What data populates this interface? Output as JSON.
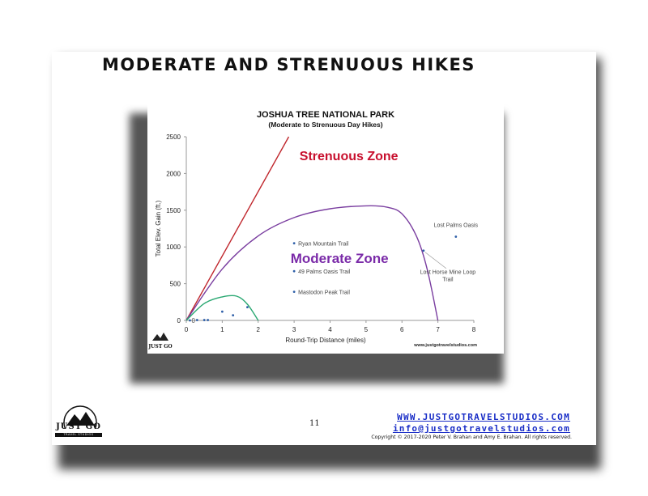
{
  "slide": {
    "title": "MODERATE AND STRENUOUS HIKES",
    "page_number": "11",
    "footer_url": "WWW.JUSTGOTRAVELSTUDIOS.COM",
    "footer_email": "info@justgotravelstudios.com",
    "copyright": "Copyright © 2017-2020 Peter V. Brahan and Amy E. Brahan.  All rights reserved.",
    "logo_text": "JUST GO",
    "logo_subtext": "TRAVEL STUDIOS"
  },
  "chart_data": {
    "type": "scatter",
    "title": "JOSHUA TREE NATIONAL PARK",
    "subtitle": "(Moderate to Strenuous Day Hikes)",
    "xlabel": "Round-Trip Distance (miles)",
    "ylabel": "Total Elev. Gain (ft.)",
    "xlim": [
      0,
      8
    ],
    "ylim": [
      0,
      2500
    ],
    "xticks": [
      "0",
      "1",
      "2",
      "3",
      "4",
      "5",
      "6",
      "7",
      "8"
    ],
    "yticks": [
      "0",
      "500",
      "1000",
      "1500",
      "2000",
      "2500"
    ],
    "watermark": "www.justgotravelstudios.com",
    "logo_text": "JUST GO",
    "grid": false,
    "points": [
      {
        "x": 0.1,
        "y": 0,
        "label": "0"
      },
      {
        "x": 0.3,
        "y": 5
      },
      {
        "x": 0.5,
        "y": 5
      },
      {
        "x": 0.6,
        "y": 5
      },
      {
        "x": 1.0,
        "y": 120
      },
      {
        "x": 1.3,
        "y": 70
      },
      {
        "x": 1.7,
        "y": 180
      },
      {
        "x": 3.0,
        "y": 1050,
        "label": "Ryan Mountain Trail"
      },
      {
        "x": 3.0,
        "y": 670,
        "label": "49 Palms Oasis Trail"
      },
      {
        "x": 3.0,
        "y": 390,
        "label": "Mastodon Peak Trail"
      },
      {
        "x": 6.6,
        "y": 950,
        "label": "Lost Horse Mine Loop Trail"
      },
      {
        "x": 7.5,
        "y": 1140,
        "label": "Lost Palms Oasis"
      }
    ],
    "zones": [
      {
        "name": "Strenuous Zone",
        "color": "#c8102e"
      },
      {
        "name": "Moderate Zone",
        "color": "#7a2aa8"
      }
    ],
    "boundary_lines": [
      {
        "kind": "line",
        "color": "#c0272d",
        "points": [
          [
            0,
            0
          ],
          [
            2.85,
            2500
          ]
        ]
      },
      {
        "kind": "curve",
        "color": "#7a3ea0",
        "points": [
          [
            0,
            0
          ],
          [
            1,
            700
          ],
          [
            2,
            1150
          ],
          [
            3,
            1400
          ],
          [
            4,
            1520
          ],
          [
            5,
            1560
          ],
          [
            5.6,
            1540
          ],
          [
            6.0,
            1450
          ],
          [
            6.4,
            1150
          ],
          [
            6.7,
            700
          ],
          [
            7.0,
            0
          ]
        ]
      },
      {
        "kind": "curve",
        "color": "#2aa872",
        "points": [
          [
            0,
            0
          ],
          [
            0.5,
            230
          ],
          [
            1.0,
            320
          ],
          [
            1.4,
            330
          ],
          [
            1.7,
            220
          ],
          [
            2.0,
            0
          ]
        ]
      }
    ],
    "point_color": "#2e5fa8",
    "axis_color": "#999999"
  }
}
